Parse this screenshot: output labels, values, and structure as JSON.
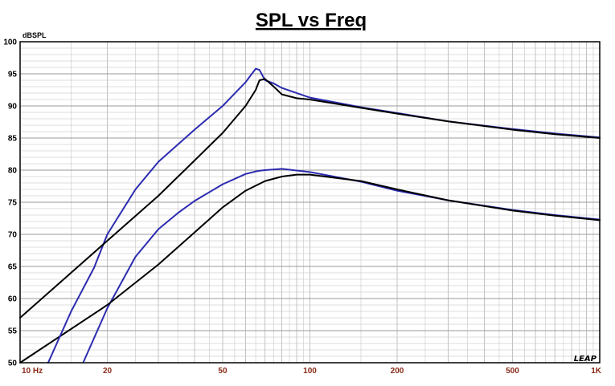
{
  "chart_data": {
    "type": "line",
    "title": "SPL vs Freq",
    "ylabel": "dBSPL",
    "xscale": "log",
    "xlim": [
      10,
      1000
    ],
    "ylim": [
      50,
      100
    ],
    "grid": true,
    "legend": "none",
    "xtick_values": [
      10,
      20,
      50,
      100,
      200,
      500,
      1000
    ],
    "xtick_labels": [
      "10  Hz",
      "20",
      "50",
      "100",
      "200",
      "500",
      "1K"
    ],
    "ytick_values": [
      50,
      55,
      60,
      65,
      70,
      75,
      80,
      85,
      90,
      95,
      100
    ],
    "ytick_labels": [
      "50",
      "55",
      "60",
      "65",
      "70",
      "75",
      "80",
      "85",
      "90",
      "95",
      "100"
    ],
    "watermark": "LEAP",
    "colors": {
      "blue": "#2b2bb0",
      "black": "#000000",
      "grid": "#bdbdbd",
      "frame": "#000000"
    },
    "series": [
      {
        "color": "#2b2bb0",
        "x": [
          16.5,
          20,
          25,
          30,
          35,
          40,
          50,
          60,
          65,
          67,
          70,
          80,
          100,
          150,
          200,
          300,
          500,
          700,
          1000
        ],
        "y": [
          50,
          58.5,
          66.5,
          70.8,
          73.3,
          75.2,
          77.8,
          79.4,
          79.8,
          79.9,
          80.0,
          80.2,
          79.7,
          78.2,
          76.8,
          75.3,
          73.8,
          73.0,
          72.3
        ]
      },
      {
        "color": "#000000",
        "x": [
          10,
          20,
          30,
          40,
          50,
          60,
          70,
          80,
          90,
          100,
          150,
          200,
          300,
          500,
          700,
          1000
        ],
        "y": [
          50,
          59,
          65.3,
          70.3,
          74.2,
          76.8,
          78.3,
          79.0,
          79.3,
          79.3,
          78.3,
          77.0,
          75.3,
          73.7,
          72.9,
          72.2
        ]
      },
      {
        "color": "#2b2bb0",
        "x": [
          12.5,
          15,
          18,
          20,
          25,
          30,
          40,
          50,
          60,
          65,
          67,
          70,
          75,
          80,
          100,
          150,
          200,
          300,
          500,
          700,
          1000
        ],
        "y": [
          50,
          58,
          64.8,
          70,
          77,
          81.3,
          86.3,
          90.0,
          93.7,
          95.8,
          95.6,
          94.0,
          93.5,
          92.8,
          91.3,
          89.8,
          88.9,
          87.6,
          86.4,
          85.7,
          85.1
        ]
      },
      {
        "color": "#000000",
        "x": [
          10,
          20,
          30,
          40,
          50,
          60,
          65,
          67,
          70,
          75,
          80,
          90,
          100,
          150,
          200,
          300,
          500,
          700,
          1000
        ],
        "y": [
          57,
          69,
          76,
          81.5,
          85.8,
          90.0,
          92.5,
          94.0,
          94.2,
          93.0,
          91.8,
          91.2,
          91.0,
          89.7,
          88.8,
          87.6,
          86.3,
          85.6,
          85.0
        ]
      }
    ]
  }
}
